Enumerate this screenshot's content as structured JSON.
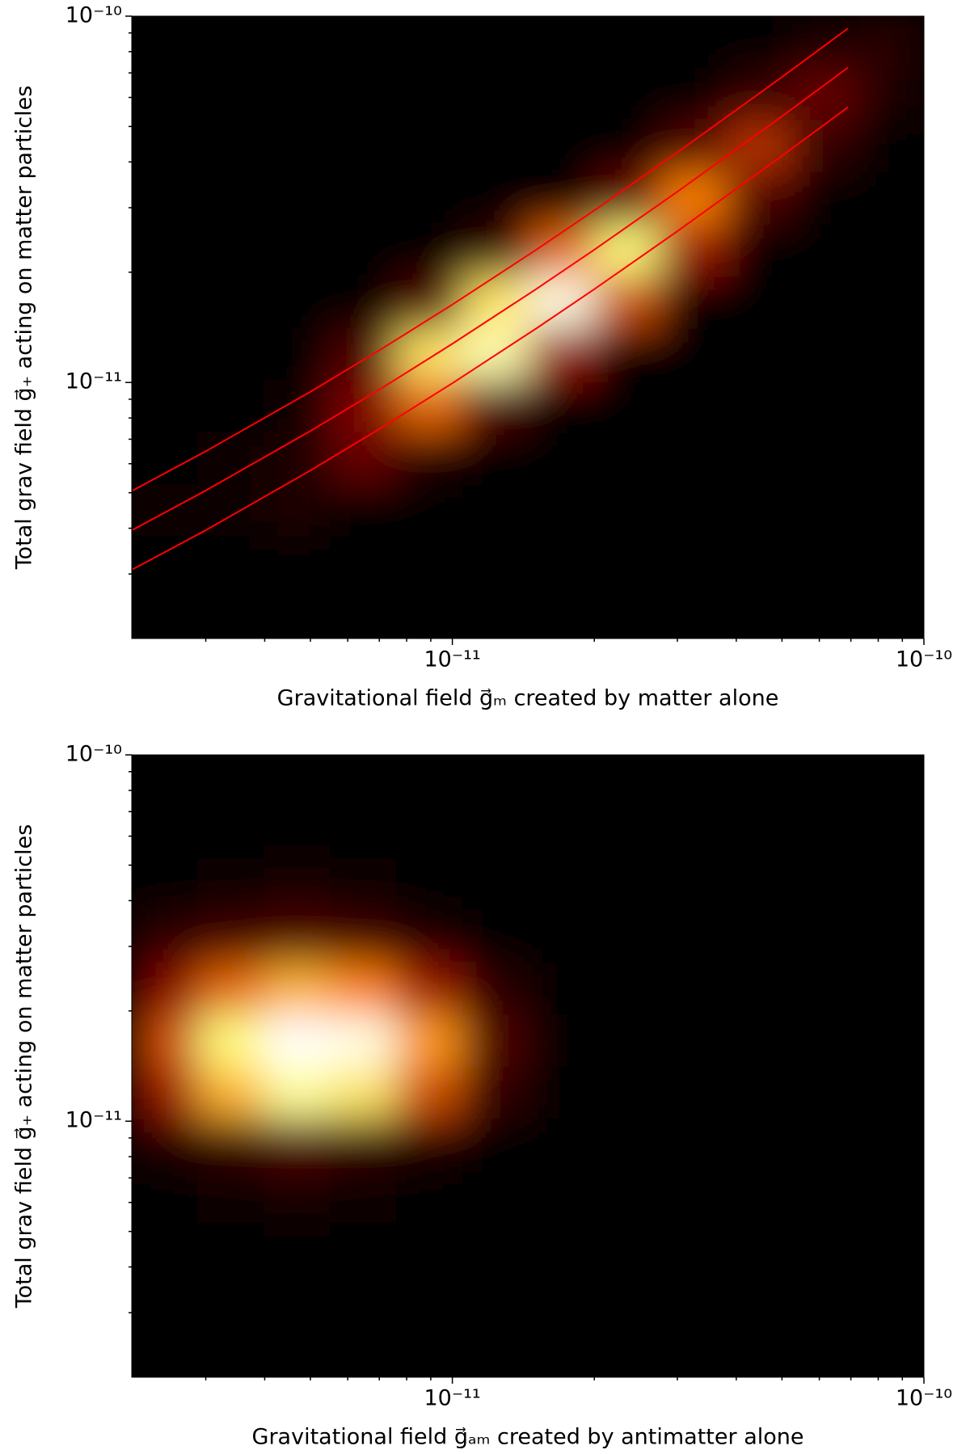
{
  "chart_data": [
    {
      "type": "hist2d",
      "scale": "log",
      "colormap": "hot",
      "xlabel": "Gravitational field g⃗ₘ created by matter alone",
      "ylabel": "Total grav field g⃗₊ acting on matter particles",
      "xlim": [
        2.09e-12,
        1e-10
      ],
      "ylim": [
        2e-12,
        1e-10
      ],
      "xticks": [
        {
          "value": 1e-11,
          "label": "10⁻¹¹"
        },
        {
          "value": 1e-10,
          "label": "10⁻¹⁰"
        }
      ],
      "yticks": [
        {
          "value": 1e-11,
          "label": "10⁻¹¹"
        },
        {
          "value": 1e-10,
          "label": "10⁻¹⁰"
        }
      ],
      "xminorticks": [
        3e-12,
        4e-12,
        5e-12,
        6e-12,
        7e-12,
        8e-12,
        9e-12,
        2e-11,
        3e-11,
        4e-11,
        5e-11,
        6e-11,
        7e-11,
        8e-11,
        9e-11
      ],
      "yminorticks": [
        3e-12,
        4e-12,
        5e-12,
        6e-12,
        7e-12,
        8e-12,
        9e-12,
        2e-11,
        3e-11,
        4e-11,
        5e-11,
        6e-11,
        7e-11,
        8e-11,
        9e-11
      ],
      "xbins": [
        2.09e-12,
        2.88e-12,
        3.98e-12,
        5.5e-12,
        7.59e-12,
        1.05e-11,
        1.45e-11,
        2e-11,
        2.75e-11,
        3.8e-11,
        5.25e-11,
        7.24e-11,
        1e-10
      ],
      "ybins": [
        2e-12,
        2.77e-12,
        3.83e-12,
        5.31e-12,
        7.36e-12,
        1.02e-11,
        1.41e-11,
        1.96e-11,
        2.71e-11,
        3.76e-11,
        5.21e-11,
        7.21e-11,
        1e-10
      ],
      "values": [
        [
          0,
          0,
          0,
          0,
          0,
          0,
          0,
          0,
          0,
          0,
          0,
          0
        ],
        [
          0,
          0,
          0,
          0,
          0,
          0,
          0,
          0,
          0,
          0,
          0,
          0
        ],
        [
          0.02,
          0.03,
          0.06,
          0,
          0,
          0,
          0,
          0,
          0,
          0,
          0,
          0
        ],
        [
          0,
          0.03,
          0.06,
          0.2,
          0.05,
          0,
          0,
          0,
          0,
          0,
          0,
          0
        ],
        [
          0,
          0,
          0.03,
          0.25,
          0.45,
          0.15,
          0,
          0,
          0,
          0,
          0,
          0
        ],
        [
          0,
          0,
          0,
          0.15,
          0.7,
          0.85,
          0.3,
          0,
          0,
          0,
          0,
          0
        ],
        [
          0,
          0,
          0,
          0,
          0.15,
          0.7,
          0.95,
          0.4,
          0,
          0,
          0,
          0
        ],
        [
          0,
          0,
          0,
          0,
          0,
          0.1,
          0.45,
          0.75,
          0.3,
          0,
          0,
          0
        ],
        [
          0,
          0,
          0,
          0,
          0,
          0,
          0,
          0.2,
          0.5,
          0.15,
          0,
          0
        ],
        [
          0,
          0,
          0,
          0,
          0,
          0,
          0,
          0,
          0.15,
          0.35,
          0.1,
          0
        ],
        [
          0,
          0,
          0,
          0,
          0,
          0,
          0,
          0,
          0,
          0.1,
          0.2,
          0.05
        ],
        [
          0,
          0,
          0,
          0,
          0,
          0,
          0,
          0,
          0,
          0,
          0.05,
          0.08
        ]
      ],
      "lines": {
        "color": "#ff0000",
        "x": [
          2.1e-12,
          3e-12,
          5e-12,
          7e-12,
          1e-11,
          1.5e-11,
          2e-11,
          3e-11,
          5e-11,
          6.9e-11
        ],
        "series": [
          {
            "values": [
              5.07e-12,
              6.49e-12,
              9.43e-12,
              1.224e-11,
              1.632e-11,
              2.295e-11,
              2.949e-11,
              4.246e-11,
              6.82e-11,
              9.26e-11
            ]
          },
          {
            "values": [
              3.96e-12,
              5.07e-12,
              7.37e-12,
              9.56e-12,
              1.275e-11,
              1.793e-11,
              2.304e-11,
              3.317e-11,
              5.328e-11,
              7.234e-11
            ]
          },
          {
            "values": [
              3.09e-12,
              3.95e-12,
              5.75e-12,
              7.46e-12,
              9.95e-12,
              1.399e-11,
              1.797e-11,
              2.587e-11,
              4.156e-11,
              5.64e-11
            ]
          }
        ]
      }
    },
    {
      "type": "hist2d",
      "scale": "log",
      "colormap": "hot",
      "xlabel": "Gravitational field g⃗ₐₘ created by antimatter alone",
      "ylabel": "Total grav field g⃗₊ acting on matter particles",
      "xlim": [
        2.09e-12,
        1e-10
      ],
      "ylim": [
        2e-12,
        1e-10
      ],
      "xticks": [
        {
          "value": 1e-11,
          "label": "10⁻¹¹"
        },
        {
          "value": 1e-10,
          "label": "10⁻¹⁰"
        }
      ],
      "yticks": [
        {
          "value": 1e-11,
          "label": "10⁻¹¹"
        },
        {
          "value": 1e-10,
          "label": "10⁻¹⁰"
        }
      ],
      "xminorticks": [
        3e-12,
        4e-12,
        5e-12,
        6e-12,
        7e-12,
        8e-12,
        9e-12,
        2e-11,
        3e-11,
        4e-11,
        5e-11,
        6e-11,
        7e-11,
        8e-11,
        9e-11
      ],
      "yminorticks": [
        3e-12,
        4e-12,
        5e-12,
        6e-12,
        7e-12,
        8e-12,
        9e-12,
        2e-11,
        3e-11,
        4e-11,
        5e-11,
        6e-11,
        7e-11,
        8e-11,
        9e-11
      ],
      "xbins": [
        2.09e-12,
        2.88e-12,
        3.98e-12,
        5.5e-12,
        7.59e-12,
        1.05e-11,
        1.45e-11,
        2e-11,
        2.75e-11,
        3.8e-11,
        5.25e-11,
        7.24e-11,
        1e-10
      ],
      "ybins": [
        2e-12,
        2.77e-12,
        3.83e-12,
        5.31e-12,
        7.36e-12,
        1.02e-11,
        1.41e-11,
        1.96e-11,
        2.71e-11,
        3.76e-11,
        5.21e-11,
        7.21e-11,
        1e-10
      ],
      "values": [
        [
          0,
          0,
          0,
          0,
          0,
          0,
          0,
          0,
          0,
          0,
          0,
          0
        ],
        [
          0,
          0,
          0,
          0,
          0,
          0,
          0,
          0,
          0,
          0,
          0,
          0
        ],
        [
          0,
          0,
          0,
          0,
          0,
          0,
          0,
          0,
          0,
          0,
          0,
          0
        ],
        [
          0,
          0.03,
          0.04,
          0.03,
          0,
          0,
          0,
          0,
          0,
          0,
          0,
          0
        ],
        [
          0.05,
          0.1,
          0.15,
          0.1,
          0.05,
          0,
          0,
          0,
          0,
          0,
          0,
          0
        ],
        [
          0.3,
          0.6,
          0.8,
          0.7,
          0.4,
          0.1,
          0,
          0,
          0,
          0,
          0,
          0
        ],
        [
          0.4,
          0.75,
          1,
          0.95,
          0.55,
          0.15,
          0,
          0,
          0,
          0,
          0,
          0
        ],
        [
          0.25,
          0.45,
          0.6,
          0.5,
          0.3,
          0.08,
          0,
          0,
          0,
          0,
          0,
          0
        ],
        [
          0.08,
          0.12,
          0.15,
          0.12,
          0.06,
          0,
          0,
          0,
          0,
          0,
          0,
          0
        ],
        [
          0,
          0.03,
          0.04,
          0.03,
          0,
          0,
          0,
          0,
          0,
          0,
          0,
          0
        ],
        [
          0,
          0,
          0,
          0,
          0,
          0,
          0,
          0,
          0,
          0,
          0,
          0
        ],
        [
          0,
          0,
          0,
          0,
          0,
          0,
          0,
          0,
          0,
          0,
          0,
          0
        ]
      ]
    }
  ]
}
